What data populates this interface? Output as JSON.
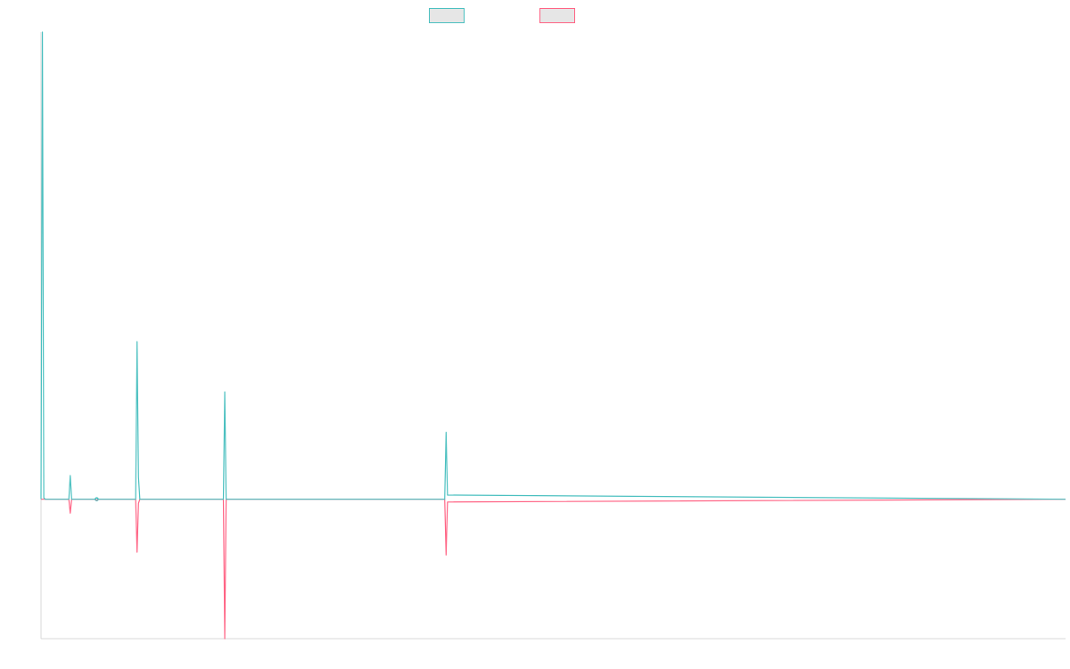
{
  "chart_data": {
    "type": "line",
    "title": "",
    "xlabel": "",
    "ylabel": "",
    "ylim": [
      -100,
      335
    ],
    "xlim": [
      0,
      736
    ],
    "grid": false,
    "legend": "top-center",
    "colors": {
      "series_positive": "#4bc0c0",
      "series_negative": "#ff6384",
      "legend_fill": "#e6e6e6",
      "axis": "#d9d9d9"
    },
    "x": [
      0,
      1,
      2,
      3,
      20,
      21,
      22,
      39,
      40,
      41,
      68,
      69,
      70,
      71,
      131,
      132,
      133,
      290,
      291,
      292,
      736
    ],
    "series": [
      {
        "values": [
          0,
          335,
          1,
          0,
          0,
          17,
          0,
          0,
          1,
          0,
          0,
          113,
          16,
          0,
          0,
          77,
          0,
          0,
          48,
          3,
          0
        ]
      },
      {
        "values": [
          0,
          0,
          0,
          0,
          0,
          -10,
          0,
          0,
          -1,
          0,
          0,
          -38,
          -3,
          0,
          0,
          -100,
          0,
          0,
          -40,
          -2,
          0
        ]
      }
    ]
  }
}
